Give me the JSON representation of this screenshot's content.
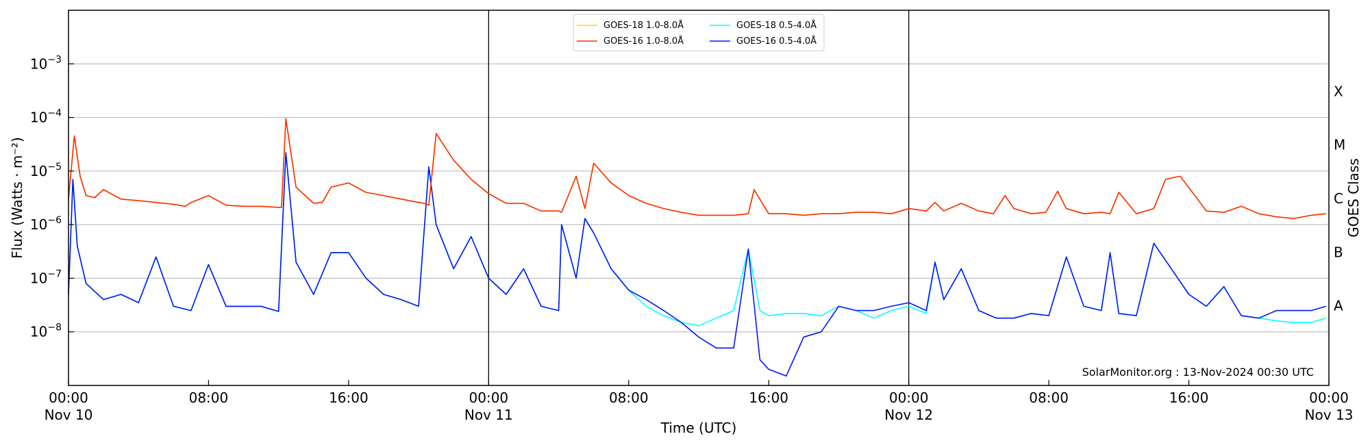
{
  "chart_data": {
    "type": "line",
    "title": "",
    "xlabel": "Time (UTC)",
    "ylabel": "Flux (Watts · m⁻²)",
    "y2label": "GOES Class",
    "y_scale": "log",
    "ylim": [
      1e-09,
      0.01
    ],
    "xlim": [
      "2024-11-10 00:00",
      "2024-11-13 00:00"
    ],
    "grid": "horizontal",
    "legend_position": "top-center",
    "watermark": "SolarMonitor.org : 13-Nov-2024 00:30 UTC",
    "y_ticks": [
      {
        "value": 1e-08,
        "base": "10",
        "exp": "−8"
      },
      {
        "value": 1e-07,
        "base": "10",
        "exp": "−7"
      },
      {
        "value": 1e-06,
        "base": "10",
        "exp": "−6"
      },
      {
        "value": 1e-05,
        "base": "10",
        "exp": "−5"
      },
      {
        "value": 0.0001,
        "base": "10",
        "exp": "−4"
      },
      {
        "value": 0.001,
        "base": "10",
        "exp": "−3"
      }
    ],
    "x_ticks": [
      {
        "value": "2024-11-10 00:00",
        "time": "00:00",
        "day": "Nov 10"
      },
      {
        "value": "2024-11-10 08:00",
        "time": "08:00",
        "day": ""
      },
      {
        "value": "2024-11-10 16:00",
        "time": "16:00",
        "day": ""
      },
      {
        "value": "2024-11-11 00:00",
        "time": "00:00",
        "day": "Nov 11"
      },
      {
        "value": "2024-11-11 08:00",
        "time": "08:00",
        "day": ""
      },
      {
        "value": "2024-11-11 16:00",
        "time": "16:00",
        "day": ""
      },
      {
        "value": "2024-11-12 00:00",
        "time": "00:00",
        "day": "Nov 12"
      },
      {
        "value": "2024-11-12 08:00",
        "time": "08:00",
        "day": ""
      },
      {
        "value": "2024-11-12 16:00",
        "time": "16:00",
        "day": ""
      },
      {
        "value": "2024-11-13 00:00",
        "time": "00:00",
        "day": "Nov 13"
      }
    ],
    "day_dividers": [
      "2024-11-11 00:00",
      "2024-11-12 00:00"
    ],
    "goes_classes": [
      {
        "label": "A",
        "center": 3.16e-08
      },
      {
        "label": "B",
        "center": 3.16e-07
      },
      {
        "label": "C",
        "center": 3.16e-06
      },
      {
        "label": "M",
        "center": 3.16e-05
      },
      {
        "label": "X",
        "center": 0.000316
      }
    ],
    "series": [
      {
        "name": "GOES-18 1.0-8.0Å",
        "color": "#ffd700",
        "x": [
          "2024-11-10 00:00",
          "2024-11-10 00:20",
          "2024-11-10 00:40",
          "2024-11-10 01:00",
          "2024-11-10 01:30",
          "2024-11-10 02:00",
          "2024-11-10 03:00",
          "2024-11-10 04:00",
          "2024-11-10 05:00",
          "2024-11-10 06:00",
          "2024-11-10 06:40",
          "2024-11-10 07:00",
          "2024-11-10 08:00",
          "2024-11-10 09:00",
          "2024-11-10 10:00",
          "2024-11-10 11:00",
          "2024-11-10 12:00",
          "2024-11-10 12:10",
          "2024-11-10 12:25",
          "2024-11-10 13:00",
          "2024-11-10 14:00",
          "2024-11-10 14:30",
          "2024-11-10 15:00",
          "2024-11-10 16:00",
          "2024-11-10 17:00",
          "2024-11-10 18:00",
          "2024-11-10 19:00",
          "2024-11-10 20:00",
          "2024-11-10 20:20",
          "2024-11-10 20:35",
          "2024-11-10 21:00",
          "2024-11-10 22:00",
          "2024-11-10 23:00",
          "2024-11-11 00:00",
          "2024-11-11 01:00",
          "2024-11-11 02:00",
          "2024-11-11 03:00",
          "2024-11-11 04:00",
          "2024-11-11 04:10",
          "2024-11-11 05:00",
          "2024-11-11 05:30",
          "2024-11-11 06:00",
          "2024-11-11 07:00",
          "2024-11-11 08:00",
          "2024-11-11 09:00",
          "2024-11-11 10:00",
          "2024-11-11 11:00",
          "2024-11-11 12:00",
          "2024-11-11 13:00",
          "2024-11-11 14:00",
          "2024-11-11 14:50",
          "2024-11-11 15:10",
          "2024-11-11 16:00",
          "2024-11-11 17:00",
          "2024-11-11 18:00",
          "2024-11-11 19:00",
          "2024-11-11 20:00",
          "2024-11-11 21:00",
          "2024-11-11 22:00",
          "2024-11-11 23:00",
          "2024-11-12 00:00",
          "2024-11-12 01:00",
          "2024-11-12 01:30",
          "2024-11-12 02:00",
          "2024-11-12 03:00",
          "2024-11-12 04:00",
          "2024-11-12 04:50",
          "2024-11-12 05:30",
          "2024-11-12 06:00",
          "2024-11-12 07:00",
          "2024-11-12 07:50",
          "2024-11-12 08:30",
          "2024-11-12 09:00",
          "2024-11-12 10:00",
          "2024-11-12 11:00",
          "2024-11-12 11:30",
          "2024-11-12 12:00",
          "2024-11-12 13:00",
          "2024-11-12 14:00",
          "2024-11-12 14:40",
          "2024-11-12 15:30",
          "2024-11-12 16:30",
          "2024-11-12 17:00",
          "2024-11-12 18:00",
          "2024-11-12 19:00",
          "2024-11-12 20:00",
          "2024-11-12 21:00",
          "2024-11-12 22:00",
          "2024-11-12 23:00",
          "2024-11-12 23:50"
        ],
        "y": [
          3e-06,
          4.5e-05,
          8e-06,
          3.5e-06,
          3.2e-06,
          4.5e-06,
          3e-06,
          2.8e-06,
          2.6e-06,
          2.4e-06,
          2.2e-06,
          2.6e-06,
          3.5e-06,
          2.3e-06,
          2.2e-06,
          2.2e-06,
          2.1e-06,
          2.1e-06,
          9.5e-05,
          5e-06,
          2.5e-06,
          2.6e-06,
          5e-06,
          6e-06,
          4e-06,
          3.5e-06,
          3e-06,
          2.6e-06,
          2.5e-06,
          2.3e-06,
          5e-05,
          1.6e-05,
          7e-06,
          3.8e-06,
          2.5e-06,
          2.5e-06,
          1.8e-06,
          1.8e-06,
          1.7e-06,
          8e-06,
          2e-06,
          1.4e-05,
          6e-06,
          3.5e-06,
          2.5e-06,
          2e-06,
          1.7e-06,
          1.5e-06,
          1.5e-06,
          1.5e-06,
          1.6e-06,
          4.5e-06,
          1.6e-06,
          1.6e-06,
          1.5e-06,
          1.6e-06,
          1.6e-06,
          1.7e-06,
          1.7e-06,
          1.6e-06,
          2e-06,
          1.8e-06,
          2.6e-06,
          1.8e-06,
          2.5e-06,
          1.8e-06,
          1.6e-06,
          3.5e-06,
          2e-06,
          1.6e-06,
          1.7e-06,
          4.2e-06,
          2e-06,
          1.6e-06,
          1.7e-06,
          1.6e-06,
          4e-06,
          1.6e-06,
          2e-06,
          7e-06,
          8e-06,
          3e-06,
          1.8e-06,
          1.7e-06,
          2.2e-06,
          1.6e-06,
          1.4e-06,
          1.3e-06,
          1.5e-06,
          1.6e-06
        ]
      },
      {
        "name": "GOES-16 1.0-8.0Å",
        "color": "#ff2a00",
        "x": [
          "2024-11-10 00:00",
          "2024-11-10 00:20",
          "2024-11-10 00:40",
          "2024-11-10 01:00",
          "2024-11-10 01:30",
          "2024-11-10 02:00",
          "2024-11-10 03:00",
          "2024-11-10 04:00",
          "2024-11-10 05:00",
          "2024-11-10 06:00",
          "2024-11-10 06:40",
          "2024-11-10 07:00",
          "2024-11-10 08:00",
          "2024-11-10 09:00",
          "2024-11-10 10:00",
          "2024-11-10 11:00",
          "2024-11-10 12:00",
          "2024-11-10 12:10",
          "2024-11-10 12:25",
          "2024-11-10 13:00",
          "2024-11-10 14:00",
          "2024-11-10 14:30",
          "2024-11-10 15:00",
          "2024-11-10 16:00",
          "2024-11-10 17:00",
          "2024-11-10 18:00",
          "2024-11-10 19:00",
          "2024-11-10 20:00",
          "2024-11-10 20:20",
          "2024-11-10 20:35",
          "2024-11-10 21:00",
          "2024-11-10 22:00",
          "2024-11-10 23:00",
          "2024-11-11 00:00",
          "2024-11-11 01:00",
          "2024-11-11 02:00",
          "2024-11-11 03:00",
          "2024-11-11 04:00",
          "2024-11-11 04:10",
          "2024-11-11 05:00",
          "2024-11-11 05:30",
          "2024-11-11 06:00",
          "2024-11-11 07:00",
          "2024-11-11 08:00",
          "2024-11-11 09:00",
          "2024-11-11 10:00",
          "2024-11-11 11:00",
          "2024-11-11 12:00",
          "2024-11-11 13:00",
          "2024-11-11 14:00",
          "2024-11-11 14:50",
          "2024-11-11 15:10",
          "2024-11-11 16:00",
          "2024-11-11 17:00",
          "2024-11-11 18:00",
          "2024-11-11 19:00",
          "2024-11-11 20:00",
          "2024-11-11 21:00",
          "2024-11-11 22:00",
          "2024-11-11 23:00",
          "2024-11-12 00:00",
          "2024-11-12 01:00",
          "2024-11-12 01:30",
          "2024-11-12 02:00",
          "2024-11-12 03:00",
          "2024-11-12 04:00",
          "2024-11-12 04:50",
          "2024-11-12 05:30",
          "2024-11-12 06:00",
          "2024-11-12 07:00",
          "2024-11-12 07:50",
          "2024-11-12 08:30",
          "2024-11-12 09:00",
          "2024-11-12 10:00",
          "2024-11-12 11:00",
          "2024-11-12 11:30",
          "2024-11-12 12:00",
          "2024-11-12 13:00",
          "2024-11-12 14:00",
          "2024-11-12 14:40",
          "2024-11-12 15:30",
          "2024-11-12 16:30",
          "2024-11-12 17:00",
          "2024-11-12 18:00",
          "2024-11-12 19:00",
          "2024-11-12 20:00",
          "2024-11-12 21:00",
          "2024-11-12 22:00",
          "2024-11-12 23:00",
          "2024-11-12 23:50"
        ],
        "y": [
          3e-06,
          4.5e-05,
          8e-06,
          3.5e-06,
          3.2e-06,
          4.5e-06,
          3e-06,
          2.8e-06,
          2.6e-06,
          2.4e-06,
          2.2e-06,
          2.6e-06,
          3.5e-06,
          2.3e-06,
          2.2e-06,
          2.2e-06,
          2.1e-06,
          2.1e-06,
          9.5e-05,
          5e-06,
          2.5e-06,
          2.6e-06,
          5e-06,
          6e-06,
          4e-06,
          3.5e-06,
          3e-06,
          2.6e-06,
          2.5e-06,
          2.3e-06,
          5e-05,
          1.6e-05,
          7e-06,
          3.8e-06,
          2.5e-06,
          2.5e-06,
          1.8e-06,
          1.8e-06,
          1.7e-06,
          8e-06,
          2e-06,
          1.4e-05,
          6e-06,
          3.5e-06,
          2.5e-06,
          2e-06,
          1.7e-06,
          1.5e-06,
          1.5e-06,
          1.5e-06,
          1.6e-06,
          4.5e-06,
          1.6e-06,
          1.6e-06,
          1.5e-06,
          1.6e-06,
          1.6e-06,
          1.7e-06,
          1.7e-06,
          1.6e-06,
          2e-06,
          1.8e-06,
          2.6e-06,
          1.8e-06,
          2.5e-06,
          1.8e-06,
          1.6e-06,
          3.5e-06,
          2e-06,
          1.6e-06,
          1.7e-06,
          4.2e-06,
          2e-06,
          1.6e-06,
          1.7e-06,
          1.6e-06,
          4e-06,
          1.6e-06,
          2e-06,
          7e-06,
          8e-06,
          3e-06,
          1.8e-06,
          1.7e-06,
          2.2e-06,
          1.6e-06,
          1.4e-06,
          1.3e-06,
          1.5e-06,
          1.6e-06
        ]
      },
      {
        "name": "GOES-18 0.5-4.0Å",
        "color": "#00ffff",
        "x": [
          "2024-11-10 00:00",
          "2024-11-10 00:15",
          "2024-11-10 00:30",
          "2024-11-10 01:00",
          "2024-11-10 02:00",
          "2024-11-10 03:00",
          "2024-11-10 04:00",
          "2024-11-10 05:00",
          "2024-11-10 06:00",
          "2024-11-10 07:00",
          "2024-11-10 08:00",
          "2024-11-10 09:00",
          "2024-11-10 10:00",
          "2024-11-10 11:00",
          "2024-11-10 12:00",
          "2024-11-10 12:25",
          "2024-11-10 13:00",
          "2024-11-10 14:00",
          "2024-11-10 15:00",
          "2024-11-10 16:00",
          "2024-11-10 17:00",
          "2024-11-10 18:00",
          "2024-11-10 19:00",
          "2024-11-10 20:00",
          "2024-11-10 20:35",
          "2024-11-10 21:00",
          "2024-11-10 22:00",
          "2024-11-10 23:00",
          "2024-11-11 00:00",
          "2024-11-11 01:00",
          "2024-11-11 02:00",
          "2024-11-11 03:00",
          "2024-11-11 04:00",
          "2024-11-11 04:10",
          "2024-11-11 05:00",
          "2024-11-11 05:30",
          "2024-11-11 06:00",
          "2024-11-11 07:00",
          "2024-11-11 08:00",
          "2024-11-11 09:00",
          "2024-11-11 10:00",
          "2024-11-11 11:00",
          "2024-11-11 12:00",
          "2024-11-11 13:00",
          "2024-11-11 14:00",
          "2024-11-11 14:50",
          "2024-11-11 15:30",
          "2024-11-11 16:00",
          "2024-11-11 17:00",
          "2024-11-11 18:00",
          "2024-11-11 19:00",
          "2024-11-11 20:00",
          "2024-11-11 21:00",
          "2024-11-11 22:00",
          "2024-11-11 23:00",
          "2024-11-12 00:00",
          "2024-11-12 01:00",
          "2024-11-12 01:30",
          "2024-11-12 02:00",
          "2024-11-12 03:00",
          "2024-11-12 04:00",
          "2024-11-12 05:00",
          "2024-11-12 06:00",
          "2024-11-12 07:00",
          "2024-11-12 08:00",
          "2024-11-12 09:00",
          "2024-11-12 10:00",
          "2024-11-12 11:00",
          "2024-11-12 11:30",
          "2024-11-12 12:00",
          "2024-11-12 13:00",
          "2024-11-12 14:00",
          "2024-11-12 15:00",
          "2024-11-12 16:00",
          "2024-11-12 17:00",
          "2024-11-12 18:00",
          "2024-11-12 19:00",
          "2024-11-12 20:00",
          "2024-11-12 21:00",
          "2024-11-12 22:00",
          "2024-11-12 23:00",
          "2024-11-12 23:50"
        ],
        "y": [
          5e-08,
          7e-06,
          4e-07,
          8e-08,
          4e-08,
          5e-08,
          3.5e-08,
          2.5e-07,
          3e-08,
          2.5e-08,
          1.8e-07,
          3e-08,
          3e-08,
          3e-08,
          2.4e-08,
          2.2e-05,
          2e-07,
          5e-08,
          3e-07,
          3e-07,
          1e-07,
          5e-08,
          4e-08,
          3e-08,
          1.2e-05,
          1e-06,
          1.5e-07,
          6e-07,
          1e-07,
          5e-08,
          1.5e-07,
          3e-08,
          2.5e-08,
          1e-06,
          1e-07,
          1.3e-06,
          7e-07,
          1.5e-07,
          6e-08,
          3e-08,
          2e-08,
          1.5e-08,
          1.3e-08,
          1.8e-08,
          2.5e-08,
          3.5e-07,
          2.5e-08,
          2e-08,
          2.2e-08,
          2.2e-08,
          2e-08,
          3e-08,
          2.5e-08,
          1.8e-08,
          2.5e-08,
          3e-08,
          2.2e-08,
          2e-07,
          4e-08,
          1.5e-07,
          2.5e-08,
          1.8e-08,
          1.8e-08,
          2.2e-08,
          2e-08,
          2.5e-07,
          3e-08,
          2.5e-08,
          3e-07,
          2.2e-08,
          2e-08,
          4.5e-07,
          1.5e-07,
          5e-08,
          3e-08,
          7e-08,
          2e-08,
          1.8e-08,
          1.6e-08,
          1.5e-08,
          1.5e-08,
          1.8e-08
        ]
      },
      {
        "name": "GOES-16 0.5-4.0Å",
        "color": "#0014ff",
        "x": [
          "2024-11-10 00:00",
          "2024-11-10 00:15",
          "2024-11-10 00:30",
          "2024-11-10 01:00",
          "2024-11-10 02:00",
          "2024-11-10 03:00",
          "2024-11-10 04:00",
          "2024-11-10 05:00",
          "2024-11-10 06:00",
          "2024-11-10 07:00",
          "2024-11-10 08:00",
          "2024-11-10 09:00",
          "2024-11-10 10:00",
          "2024-11-10 11:00",
          "2024-11-10 12:00",
          "2024-11-10 12:25",
          "2024-11-10 13:00",
          "2024-11-10 14:00",
          "2024-11-10 15:00",
          "2024-11-10 16:00",
          "2024-11-10 17:00",
          "2024-11-10 18:00",
          "2024-11-10 19:00",
          "2024-11-10 20:00",
          "2024-11-10 20:35",
          "2024-11-10 21:00",
          "2024-11-10 22:00",
          "2024-11-10 23:00",
          "2024-11-11 00:00",
          "2024-11-11 01:00",
          "2024-11-11 02:00",
          "2024-11-11 03:00",
          "2024-11-11 04:00",
          "2024-11-11 04:10",
          "2024-11-11 05:00",
          "2024-11-11 05:30",
          "2024-11-11 06:00",
          "2024-11-11 07:00",
          "2024-11-11 08:00",
          "2024-11-11 09:00",
          "2024-11-11 10:00",
          "2024-11-11 11:00",
          "2024-11-11 12:00",
          "2024-11-11 13:00",
          "2024-11-11 14:00",
          "2024-11-11 14:50",
          "2024-11-11 15:30",
          "2024-11-11 16:00",
          "2024-11-11 17:00",
          "2024-11-11 18:00",
          "2024-11-11 19:00",
          "2024-11-11 20:00",
          "2024-11-11 21:00",
          "2024-11-11 22:00",
          "2024-11-11 23:00",
          "2024-11-12 00:00",
          "2024-11-12 01:00",
          "2024-11-12 01:30",
          "2024-11-12 02:00",
          "2024-11-12 03:00",
          "2024-11-12 04:00",
          "2024-11-12 05:00",
          "2024-11-12 06:00",
          "2024-11-12 07:00",
          "2024-11-12 08:00",
          "2024-11-12 09:00",
          "2024-11-12 10:00",
          "2024-11-12 11:00",
          "2024-11-12 11:30",
          "2024-11-12 12:00",
          "2024-11-12 13:00",
          "2024-11-12 14:00",
          "2024-11-12 15:00",
          "2024-11-12 16:00",
          "2024-11-12 17:00",
          "2024-11-12 18:00",
          "2024-11-12 19:00",
          "2024-11-12 20:00",
          "2024-11-12 21:00",
          "2024-11-12 22:00",
          "2024-11-12 23:00",
          "2024-11-12 23:50"
        ],
        "y": [
          5e-08,
          7e-06,
          4e-07,
          8e-08,
          4e-08,
          5e-08,
          3.5e-08,
          2.5e-07,
          3e-08,
          2.5e-08,
          1.8e-07,
          3e-08,
          3e-08,
          3e-08,
          2.4e-08,
          2.2e-05,
          2e-07,
          5e-08,
          3e-07,
          3e-07,
          1e-07,
          5e-08,
          4e-08,
          3e-08,
          1.2e-05,
          1e-06,
          1.5e-07,
          6e-07,
          1e-07,
          5e-08,
          1.5e-07,
          3e-08,
          2.5e-08,
          1e-06,
          1e-07,
          1.3e-06,
          7e-07,
          1.5e-07,
          6e-08,
          4e-08,
          2.5e-08,
          1.5e-08,
          8e-09,
          5e-09,
          5e-09,
          3.5e-07,
          3e-09,
          2e-09,
          1.5e-09,
          8e-09,
          1e-08,
          3e-08,
          2.5e-08,
          2.5e-08,
          3e-08,
          3.5e-08,
          2.5e-08,
          2e-07,
          4e-08,
          1.5e-07,
          2.5e-08,
          1.8e-08,
          1.8e-08,
          2.2e-08,
          2e-08,
          2.5e-07,
          3e-08,
          2.5e-08,
          3e-07,
          2.2e-08,
          2e-08,
          4.5e-07,
          1.5e-07,
          5e-08,
          3e-08,
          7e-08,
          2e-08,
          1.8e-08,
          2.5e-08,
          2.5e-08,
          2.5e-08,
          3e-08
        ]
      }
    ]
  }
}
